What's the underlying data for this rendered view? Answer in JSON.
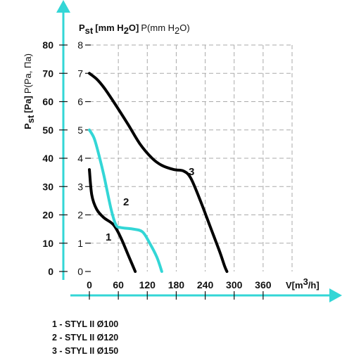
{
  "chart_data": {
    "type": "line",
    "title": "",
    "ylabel_pa": {
      "prefix": "P",
      "sub": "st",
      "main": "[Pa]",
      "rest": "P(Pa, Па)"
    },
    "ylabel_mm": {
      "prefix": "P",
      "sub": "st",
      "main": "[mm H",
      "main_sub": "2",
      "main_end": "O]",
      "rest": "P(mm H",
      "rest_sub": "2",
      "rest_end": "O)"
    },
    "xlabel": {
      "main": "V[m",
      "sup": "3",
      "end": "/h]"
    },
    "x_ticks": [
      "0",
      "60",
      "120",
      "180",
      "240",
      "300",
      "360"
    ],
    "y_ticks_pa": [
      "0",
      "10",
      "20",
      "30",
      "40",
      "50",
      "60",
      "70",
      "80"
    ],
    "y_ticks_mm": [
      "0",
      "1",
      "2",
      "3",
      "4",
      "5",
      "6",
      "7",
      "8"
    ],
    "xlim": [
      0,
      420
    ],
    "ylim": [
      0,
      80
    ],
    "grid": true,
    "series": [
      {
        "name": "1",
        "color": "#000000",
        "points": [
          [
            0,
            36
          ],
          [
            5,
            27
          ],
          [
            15,
            22
          ],
          [
            30,
            19
          ],
          [
            50,
            16.5
          ],
          [
            65,
            12
          ],
          [
            80,
            6
          ],
          [
            90,
            2
          ],
          [
            95,
            0
          ]
        ]
      },
      {
        "name": "2",
        "color": "#33d6d6",
        "points": [
          [
            0,
            50
          ],
          [
            10,
            47
          ],
          [
            20,
            41
          ],
          [
            30,
            34
          ],
          [
            45,
            22
          ],
          [
            55,
            16.5
          ],
          [
            65,
            15.5
          ],
          [
            90,
            15
          ],
          [
            110,
            14
          ],
          [
            125,
            10
          ],
          [
            140,
            5
          ],
          [
            150,
            0
          ]
        ]
      },
      {
        "name": "3",
        "color": "#000000",
        "points": [
          [
            0,
            70
          ],
          [
            15,
            68
          ],
          [
            30,
            65
          ],
          [
            50,
            60
          ],
          [
            80,
            52
          ],
          [
            105,
            45
          ],
          [
            130,
            40
          ],
          [
            150,
            37.5
          ],
          [
            175,
            36
          ],
          [
            195,
            35.5
          ],
          [
            210,
            33
          ],
          [
            230,
            25
          ],
          [
            250,
            16
          ],
          [
            270,
            7
          ],
          [
            280,
            2
          ],
          [
            285,
            0
          ]
        ]
      }
    ]
  },
  "legend": [
    "1 - STYL II Ø100",
    "2 - STYL II Ø120",
    "3 - STYL II Ø150"
  ]
}
